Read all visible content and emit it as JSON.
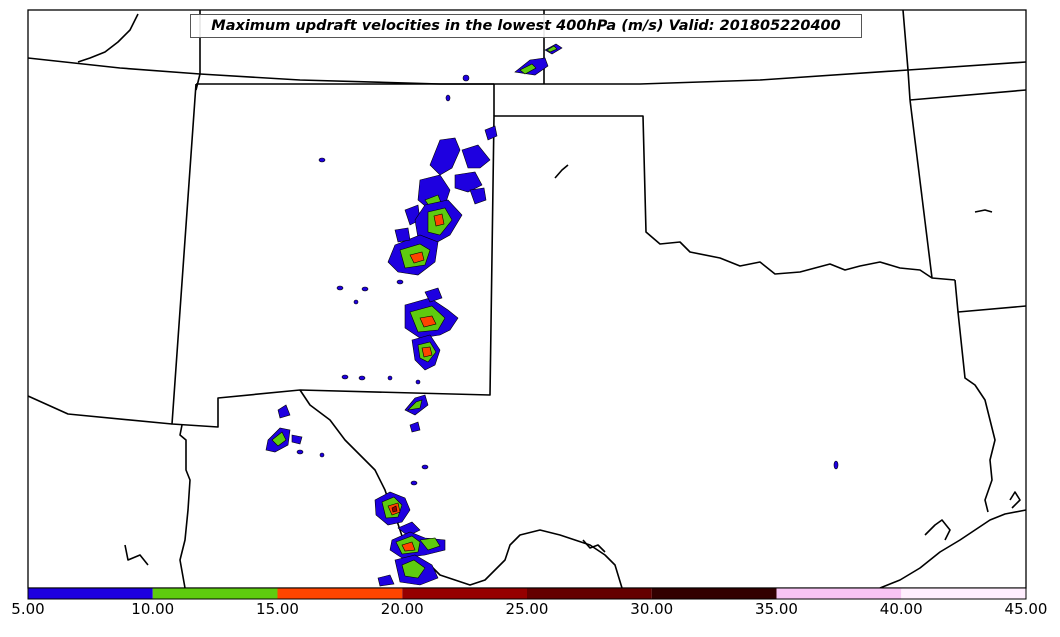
{
  "map": {
    "title": "Maximum updraft velocities in the lowest 400hPa (m/s) Valid: 201805220400",
    "region": "Southern Plains (Texas, Oklahoma, New Mexico) with northern Mexico",
    "boundary_color": "#000000",
    "background_color": "#ffffff"
  },
  "colorbar": {
    "ticks": [
      "5.00",
      "10.00",
      "15.00",
      "20.00",
      "25.00",
      "30.00",
      "35.00",
      "40.00",
      "45.00"
    ],
    "colors": [
      "#1e00e0",
      "#5ecb0f",
      "#ff4500",
      "#960000",
      "#640000",
      "#320000",
      "#f8c4f4",
      "#ffeefe"
    ]
  }
}
